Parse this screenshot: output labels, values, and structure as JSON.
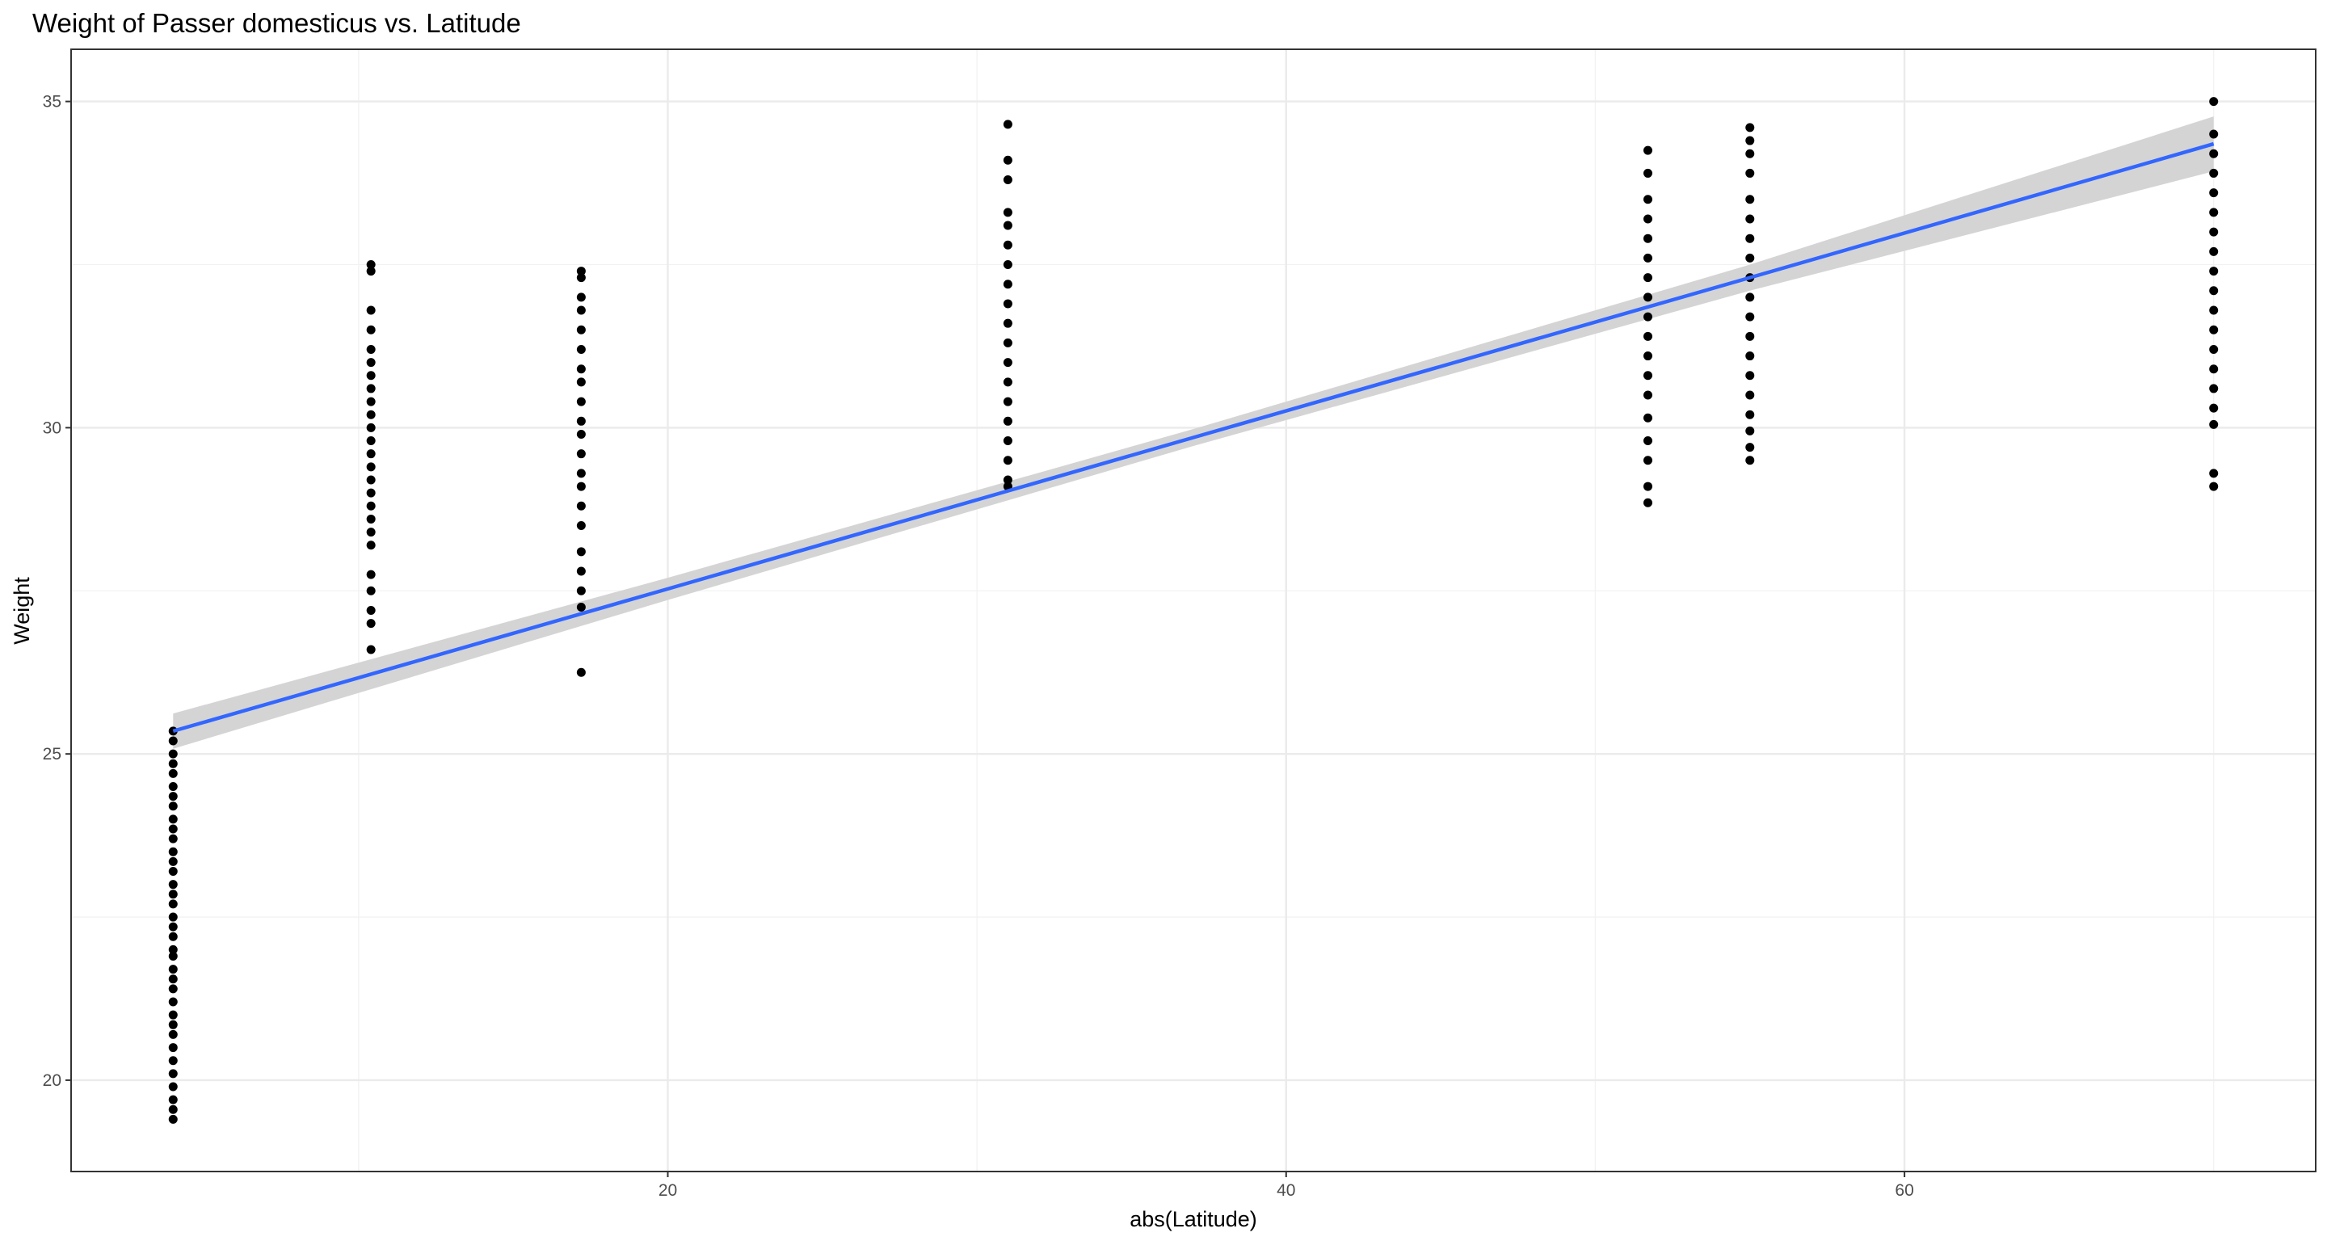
{
  "chart_data": {
    "type": "scatter",
    "title": "Weight of Passer domesticus vs. Latitude",
    "x_label": "abs(Latitude)",
    "y_label": "Weight",
    "xlim": [
      0.7,
      73.3
    ],
    "ylim": [
      18.6,
      35.8
    ],
    "xticks": [
      20,
      40,
      60
    ],
    "yticks": [
      20,
      25,
      30,
      35
    ],
    "grid": true,
    "point_color": "#000000",
    "groups": [
      {
        "x": 4,
        "values": [
          19.4,
          19.55,
          19.7,
          19.9,
          20.1,
          20.3,
          20.5,
          20.7,
          20.85,
          21.0,
          21.2,
          21.4,
          21.55,
          21.7,
          21.9,
          22.0,
          22.2,
          22.35,
          22.5,
          22.7,
          22.85,
          23.0,
          23.2,
          23.35,
          23.5,
          23.7,
          23.85,
          24.0,
          24.2,
          24.35,
          24.5,
          24.7,
          24.85,
          25.0,
          25.2,
          25.35
        ]
      },
      {
        "x": 10.4,
        "values": [
          26.6,
          27.0,
          27.2,
          27.5,
          27.75,
          28.2,
          28.4,
          28.6,
          28.8,
          29.0,
          29.2,
          29.4,
          29.6,
          29.8,
          30.0,
          30.2,
          30.4,
          30.6,
          30.8,
          31.0,
          31.2,
          31.5,
          31.8,
          32.4,
          32.5
        ]
      },
      {
        "x": 17.2,
        "values": [
          26.25,
          27.25,
          27.5,
          27.8,
          28.1,
          28.5,
          28.8,
          29.1,
          29.3,
          29.6,
          29.9,
          30.1,
          30.4,
          30.7,
          30.9,
          31.2,
          31.5,
          31.8,
          32.0,
          32.3,
          32.4
        ]
      },
      {
        "x": 31,
        "values": [
          29.1,
          29.2,
          29.5,
          29.8,
          30.1,
          30.4,
          30.7,
          31.0,
          31.3,
          31.6,
          31.9,
          32.2,
          32.5,
          32.8,
          33.1,
          33.3,
          33.8,
          34.1,
          34.65
        ]
      },
      {
        "x": 51.7,
        "values": [
          28.85,
          29.1,
          29.5,
          29.8,
          30.15,
          30.5,
          30.8,
          31.1,
          31.4,
          31.7,
          32.0,
          32.3,
          32.6,
          32.9,
          33.2,
          33.5,
          33.9,
          34.25
        ]
      },
      {
        "x": 55,
        "values": [
          29.5,
          29.7,
          29.95,
          30.2,
          30.5,
          30.8,
          31.1,
          31.4,
          31.7,
          32.0,
          32.3,
          32.6,
          32.9,
          33.2,
          33.5,
          33.9,
          34.2,
          34.4,
          34.6
        ]
      },
      {
        "x": 70,
        "values": [
          29.1,
          29.3,
          30.05,
          30.3,
          30.6,
          30.9,
          31.2,
          31.5,
          31.8,
          32.1,
          32.4,
          32.7,
          33.0,
          33.3,
          33.6,
          33.9,
          34.2,
          34.5,
          35.0
        ]
      }
    ],
    "fit": {
      "color": "#3366ff",
      "band_color": "#d4d4d4",
      "x": [
        4,
        20,
        37,
        55,
        70
      ],
      "y": [
        25.35,
        27.53,
        29.85,
        32.3,
        34.35
      ],
      "lower": [
        25.08,
        27.36,
        29.72,
        32.1,
        33.93
      ],
      "upper": [
        25.62,
        27.7,
        29.98,
        32.5,
        34.77
      ]
    }
  }
}
